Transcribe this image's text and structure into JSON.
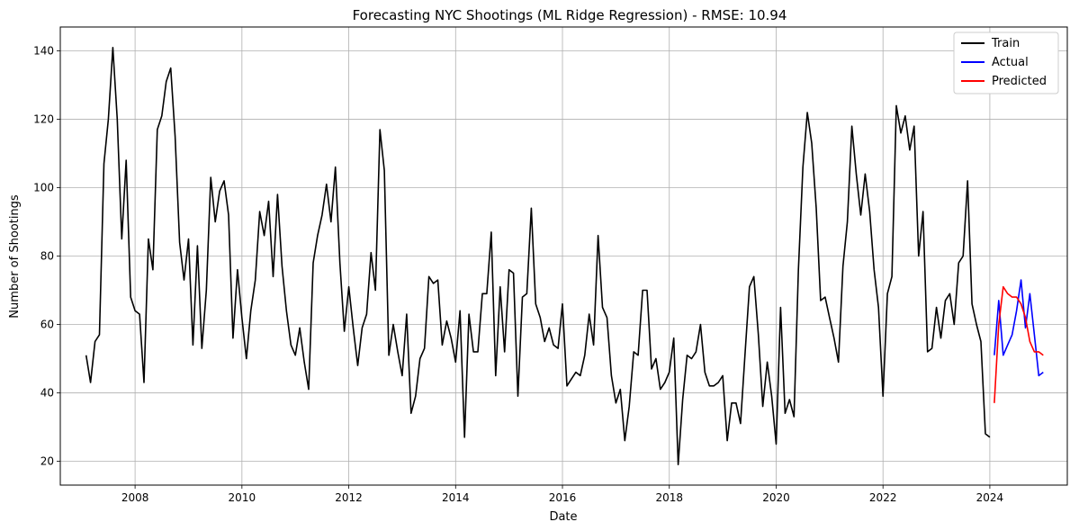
{
  "chart_data": {
    "type": "line",
    "title": "Forecasting NYC Shootings (ML Ridge Regression) - RMSE: 10.94",
    "xlabel": "Date",
    "ylabel": "Number of Shootings",
    "x_ticks": [
      2008,
      2010,
      2012,
      2014,
      2016,
      2018,
      2020,
      2022,
      2024
    ],
    "y_ticks": [
      20,
      40,
      60,
      80,
      100,
      120,
      140
    ],
    "xlim": [
      2006.6,
      2025.45
    ],
    "ylim": [
      13,
      147
    ],
    "grid": true,
    "legend_position": "top-right",
    "series": [
      {
        "name": "Train",
        "color": "#000000",
        "start": "2007-01",
        "values": [
          51,
          43,
          55,
          57,
          107,
          120,
          141,
          120,
          85,
          108,
          68,
          64,
          63,
          43,
          85,
          76,
          117,
          121,
          131,
          135,
          115,
          84,
          73,
          85,
          54,
          83,
          53,
          70,
          103,
          90,
          99,
          102,
          92,
          56,
          76,
          62,
          50,
          64,
          73,
          93,
          86,
          96,
          74,
          98,
          77,
          64,
          54,
          51,
          59,
          49,
          41,
          78,
          86,
          92,
          101,
          90,
          106,
          78,
          58,
          71,
          59,
          48,
          59,
          63,
          81,
          70,
          117,
          105,
          51,
          60,
          52,
          45,
          63,
          34,
          39,
          50,
          53,
          74,
          72,
          73,
          54,
          61,
          56,
          49,
          64,
          27,
          63,
          52,
          52,
          69,
          69,
          87,
          45,
          71,
          52,
          76,
          75,
          39,
          68,
          69,
          94,
          66,
          62,
          55,
          59,
          54,
          53,
          66,
          42,
          44,
          46,
          45,
          51,
          63,
          54,
          86,
          65,
          62,
          45,
          37,
          41,
          26,
          36,
          52,
          51,
          70,
          70,
          47,
          50,
          41,
          43,
          46,
          56,
          19,
          38,
          51,
          50,
          52,
          60,
          46,
          42,
          42,
          43,
          45,
          26,
          37,
          37,
          31,
          51,
          71,
          74,
          57,
          36,
          49,
          39,
          25,
          65,
          34,
          38,
          33,
          76,
          106,
          122,
          113,
          94,
          67,
          68,
          62,
          56,
          49,
          77,
          90,
          118,
          104,
          92,
          104,
          93,
          76,
          65,
          39,
          69,
          74,
          124,
          116,
          121,
          111,
          118,
          80,
          93,
          52,
          53,
          65,
          56,
          67,
          69,
          60,
          78,
          80,
          102,
          66,
          60,
          55,
          28,
          27
        ]
      },
      {
        "name": "Actual",
        "color": "#0000ff",
        "start": "2024-01",
        "values": [
          51,
          67,
          51,
          54,
          57,
          64,
          73,
          59,
          69,
          57,
          45,
          46
        ]
      },
      {
        "name": "Predicted",
        "color": "#ff0000",
        "start": "2024-01",
        "values": [
          37,
          60,
          71,
          69,
          68,
          68,
          66,
          62,
          55,
          52,
          52,
          51
        ]
      }
    ]
  }
}
